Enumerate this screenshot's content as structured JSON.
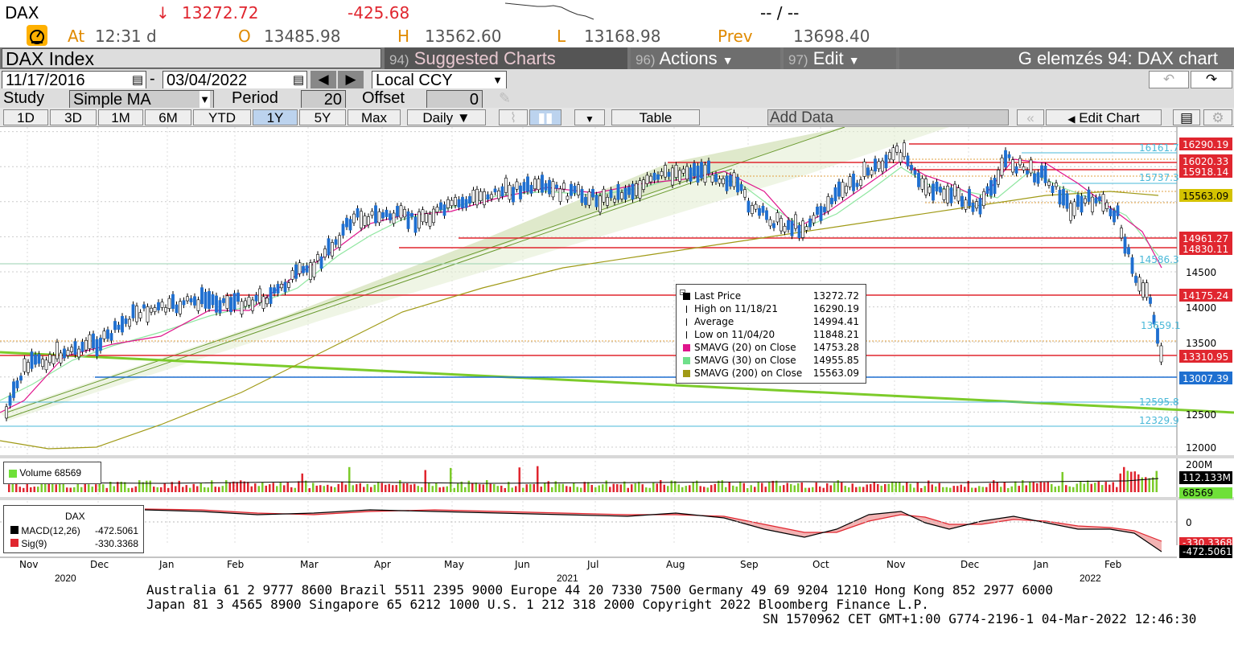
{
  "quote": {
    "ticker": "DAX",
    "arrow": "↓",
    "last": "13272.72",
    "change": "-425.68",
    "bid_ask": "-- / --",
    "at_label": "At",
    "time": "12:31 d",
    "open_label": "O",
    "open": "13485.98",
    "high_label": "H",
    "high": "13562.60",
    "low_label": "L",
    "low": "13168.98",
    "prev_label": "Prev",
    "prev": "13698.40"
  },
  "menu": {
    "title": "DAX Index",
    "suggested_num": "94)",
    "suggested_label": "Suggested Charts",
    "actions_num": "96)",
    "actions_label": "Actions",
    "edit_num": "97)",
    "edit_label": "Edit",
    "right_title": "G elemzés 94: DAX chart"
  },
  "range": {
    "start": "11/17/2016",
    "end": "03/04/2022",
    "sep": "-",
    "currency": "Local CCY"
  },
  "study": {
    "label": "Study",
    "value": "Simple MA",
    "period_label": "Period",
    "period": "20",
    "offset_label": "Offset",
    "offset": "0"
  },
  "toolbar": {
    "periods": [
      "1D",
      "3D",
      "1M",
      "6M",
      "YTD",
      "1Y",
      "5Y",
      "Max"
    ],
    "selected": "1Y",
    "frequency": "Daily ▼",
    "table": "Table",
    "add_data": "Add Data",
    "edit_chart": "Edit Chart"
  },
  "legend": {
    "rows": [
      {
        "label": "Last Price",
        "value": "13272.72",
        "color": "#000000"
      },
      {
        "label": "High on 11/18/21",
        "value": "16290.19",
        "color": "#000000"
      },
      {
        "label": "Average",
        "value": "14994.41",
        "color": "#000000"
      },
      {
        "label": "Low on 11/04/20",
        "value": "11848.21",
        "color": "#000000"
      },
      {
        "label": "SMAVG (20)  on Close",
        "value": "14753.28",
        "color": "#e0148c"
      },
      {
        "label": "SMAVG (30)  on Close",
        "value": "14955.85",
        "color": "#6fe08a"
      },
      {
        "label": "SMAVG (200)  on Close",
        "value": "15563.09",
        "color": "#a09a16"
      }
    ]
  },
  "volume": {
    "label": "Volume",
    "value": "68569"
  },
  "macd": {
    "title": "DAX",
    "macd_label": "MACD(12,26)",
    "macd_value": "-472.5061",
    "sig_label": "Sig(9)",
    "sig_value": "-330.3368"
  },
  "chart_data": {
    "type": "candlestick",
    "y_axis_ticks": [
      "14500",
      "14000",
      "13500",
      "12500",
      "12000"
    ],
    "x_month_labels": [
      "Nov",
      "Dec",
      "Jan",
      "Feb",
      "Mar",
      "Apr",
      "May",
      "Jun",
      "Jul",
      "Aug",
      "Sep",
      "Oct",
      "Nov",
      "Dec",
      "Jan",
      "Feb"
    ],
    "x_year_labels": [
      "2020",
      "2021",
      "2022"
    ],
    "price_tags": [
      {
        "text": "16290.19",
        "color": "#e0262f"
      },
      {
        "text": "16020.33",
        "color": "#e0262f"
      },
      {
        "text": "15918.14",
        "color": "#e0262f"
      },
      {
        "text": "15563.09",
        "color": "#d4c200"
      },
      {
        "text": "14961.27",
        "color": "#e0262f"
      },
      {
        "text": "14830.11",
        "color": "#e0262f"
      },
      {
        "text": "14175.24",
        "color": "#e0262f"
      },
      {
        "text": "13310.95",
        "color": "#e0262f"
      },
      {
        "text": "13007.39",
        "color": "#1e6fd0"
      }
    ],
    "level_labels": [
      "16161.7",
      "15737.3",
      "14586.3",
      "13659.1",
      "12595.8",
      "12329.9"
    ],
    "volume_axis": [
      "200M",
      "112.133M",
      "68569"
    ],
    "macd_axis": [
      "0",
      "-330.3368",
      "-472.5061"
    ],
    "range": {
      "low": 11848.21,
      "high": 16290.19,
      "average": 14994.41,
      "last": 13272.72
    }
  },
  "footer": {
    "line1": "Australia 61 2 9777 8600 Brazil 5511 2395 9000 Europe 44 20 7330 7500 Germany 49 69 9204 1210 Hong Kong 852 2977 6000",
    "line2": "Japan 81 3 4565 8900      Singapore 65 6212 1000      U.S. 1 212 318 2000         Copyright 2022 Bloomberg Finance L.P.",
    "line3": "SN 1570962 CET  GMT+1:00 G774-2196-1 04-Mar-2022 12:46:30"
  }
}
